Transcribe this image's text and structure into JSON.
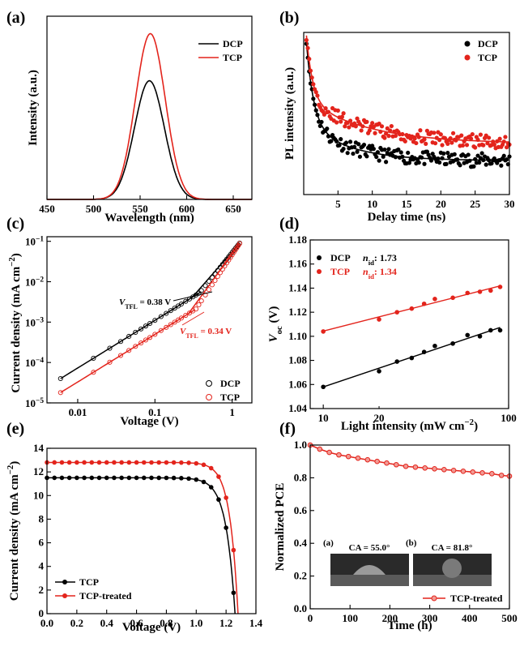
{
  "chart_data": [
    {
      "id": "a",
      "panel_label": "(a)",
      "type": "line",
      "xlabel": "Wavelength (nm)",
      "ylabel": "Intensity (a.u.)",
      "xlim": [
        450,
        670
      ],
      "ylim": [
        0,
        1.05
      ],
      "xticks": [
        450,
        500,
        550,
        600,
        650
      ],
      "legend_position": "top-right",
      "series": [
        {
          "name": "DCP",
          "color": "#000000",
          "peak_x": 560,
          "peak_y": 0.68,
          "width_sigma": 16
        },
        {
          "name": "TCP",
          "color": "#e3241c",
          "peak_x": 561,
          "peak_y": 0.95,
          "width_sigma": 16
        }
      ]
    },
    {
      "id": "b",
      "panel_label": "(b)",
      "type": "scatter",
      "xlabel": "Delay time (ns)",
      "ylabel": "PL intensity (a.u.)",
      "xlim": [
        0,
        30
      ],
      "ylim": [
        0,
        1.05
      ],
      "xticks": [
        5,
        10,
        15,
        20,
        25,
        30
      ],
      "legend_position": "top-right",
      "series": [
        {
          "name": "DCP",
          "color": "#000000",
          "fit": {
            "a1": 0.52,
            "t1": 1.0,
            "a2": 0.25,
            "t2": 6.0,
            "c": 0.22
          }
        },
        {
          "name": "TCP",
          "color": "#e3241c",
          "fit": {
            "a1": 0.42,
            "t1": 0.9,
            "a2": 0.28,
            "t2": 9.0,
            "c": 0.33
          }
        }
      ]
    },
    {
      "id": "c",
      "panel_label": "(c)",
      "type": "scatter",
      "xlabel": "Voltage (V)",
      "ylabel": "Current density (mA cm",
      "ylabel_sup": "−2",
      "ylabel_end": ")",
      "xscale": "log",
      "yscale": "log",
      "xlim": [
        0.004,
        1.8
      ],
      "ylim": [
        1e-05,
        0.13
      ],
      "xticks": [
        0.01,
        0.1,
        1
      ],
      "xtick_labels": [
        "0.01",
        "0.1",
        "1"
      ],
      "yticks_exp": [
        -5,
        -4,
        -3,
        -2,
        -1
      ],
      "legend_position": "bottom-right",
      "annotations": [
        {
          "main": "V",
          "sub": "TFL",
          "rest": " = 0.38 V",
          "color": "#000000"
        },
        {
          "main": "V",
          "sub": "TFL",
          "rest": " = 0.34 V",
          "color": "#e3241c"
        }
      ],
      "series": [
        {
          "name": "DCP",
          "color": "#000000",
          "y_at_0p006": 4e-05,
          "y_at_1p25": 0.09,
          "vtfl": 0.38
        },
        {
          "name": "TCP",
          "color": "#e3241c",
          "y_at_0p006": 1.8e-05,
          "y_at_1p25": 0.088,
          "vtfl": 0.34
        }
      ]
    },
    {
      "id": "d",
      "panel_label": "(d)",
      "type": "scatter",
      "xlabel": "Light intensity (mW cm",
      "xlabel_sup": "−2",
      "xlabel_end": ")",
      "ylabel_main": "V",
      "ylabel_sub": "oc",
      "ylabel_end": " (V)",
      "xscale": "log",
      "xlim": [
        8.5,
        100
      ],
      "ylim": [
        1.04,
        1.18
      ],
      "xticks": [
        10,
        100
      ],
      "xminor": [
        20
      ],
      "yticks": [
        1.04,
        1.06,
        1.08,
        1.1,
        1.12,
        1.14,
        1.16,
        1.18
      ],
      "legend_position": "top-left",
      "series": [
        {
          "name": "DCP",
          "color": "#000000",
          "nid_label": "n",
          "nid_sub": "id",
          "nid_value": ": 1.73",
          "x": [
            10,
            20,
            25,
            30,
            35,
            40,
            50,
            60,
            70,
            80,
            90
          ],
          "y": [
            1.058,
            1.071,
            1.079,
            1.082,
            1.087,
            1.092,
            1.094,
            1.101,
            1.1,
            1.105,
            1.105
          ]
        },
        {
          "name": "TCP",
          "color": "#e3241c",
          "nid_label": "n",
          "nid_sub": "id",
          "nid_value": ": 1.34",
          "x": [
            10,
            20,
            25,
            30,
            35,
            40,
            50,
            60,
            70,
            80,
            90
          ],
          "y": [
            1.104,
            1.114,
            1.12,
            1.123,
            1.127,
            1.131,
            1.132,
            1.136,
            1.137,
            1.138,
            1.141
          ]
        }
      ]
    },
    {
      "id": "e",
      "panel_label": "(e)",
      "type": "line",
      "xlabel": "Voltage (V)",
      "ylabel": "Current density (mA cm",
      "ylabel_sup": "−2",
      "ylabel_end": ")",
      "xlim": [
        0,
        1.4
      ],
      "ylim": [
        0,
        14
      ],
      "xticks": [
        0.0,
        0.2,
        0.4,
        0.6,
        0.8,
        1.0,
        1.2,
        1.4
      ],
      "xtick_labels": [
        "0.0",
        "0.2",
        "0.4",
        "0.6",
        "0.8",
        "1.0",
        "1.2",
        "1.4"
      ],
      "yticks": [
        0,
        2,
        4,
        6,
        8,
        10,
        12,
        14
      ],
      "legend_position": "bottom-left",
      "series": [
        {
          "name": "TCP",
          "color": "#000000",
          "jsc": 11.5,
          "voc": 1.26,
          "n_ideal": 0.06
        },
        {
          "name": "TCP-treated",
          "color": "#e3241c",
          "jsc": 12.8,
          "voc": 1.28,
          "n_ideal": 0.055
        }
      ]
    },
    {
      "id": "f",
      "panel_label": "(f)",
      "type": "line",
      "xlabel": "Time (h)",
      "ylabel": "Normalized PCE",
      "xlim": [
        0,
        500
      ],
      "ylim": [
        0,
        1.0
      ],
      "xticks": [
        0,
        100,
        200,
        300,
        400,
        500
      ],
      "yticks": [
        0.0,
        0.2,
        0.4,
        0.6,
        0.8,
        1.0
      ],
      "ytick_labels": [
        "0.0",
        "0.2",
        "0.4",
        "0.6",
        "0.8",
        "1.0"
      ],
      "legend_position": "bottom-right",
      "series": [
        {
          "name": "TCP-treated",
          "color": "#e3241c",
          "x": [
            0,
            24,
            48,
            72,
            96,
            120,
            144,
            168,
            192,
            216,
            240,
            264,
            288,
            312,
            336,
            360,
            384,
            408,
            432,
            456,
            480,
            500
          ],
          "y": [
            1.0,
            0.975,
            0.955,
            0.94,
            0.93,
            0.92,
            0.91,
            0.9,
            0.89,
            0.88,
            0.87,
            0.865,
            0.86,
            0.855,
            0.85,
            0.845,
            0.84,
            0.835,
            0.83,
            0.825,
            0.815,
            0.81
          ]
        }
      ],
      "insets": [
        {
          "label": "(a)",
          "caption": "CA = 55.0°"
        },
        {
          "label": "(b)",
          "caption": "CA = 81.8°"
        }
      ]
    }
  ]
}
